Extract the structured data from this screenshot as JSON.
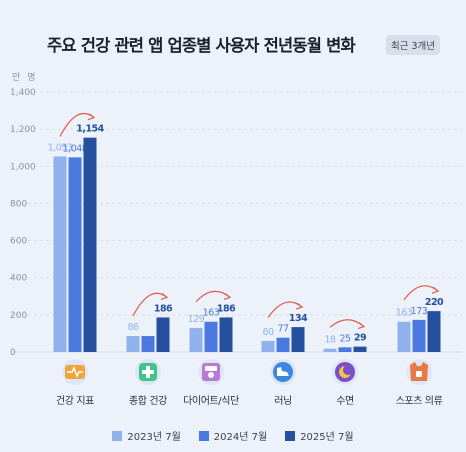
{
  "header": {
    "title": "주요 건강 관련 앱 업종별 사용자 전년동월 변화",
    "badge": "최근 3개년",
    "unit": "만 명"
  },
  "colors": {
    "series_2023": "#8fb2ec",
    "series_2024": "#4a7ae0",
    "series_2025": "#24509f",
    "arrow": "#e05a4f",
    "grid": "#d7dde8",
    "axis_text": "#8c95a6"
  },
  "chart_data": {
    "type": "bar",
    "title": "주요 건강 관련 앱 업종별 사용자 전년동월 변화",
    "ylabel": "만 명",
    "ylim": [
      0,
      1400
    ],
    "yticks": [
      0,
      200,
      400,
      600,
      800,
      1000,
      1200,
      1400
    ],
    "ytick_labels": [
      "0",
      "200",
      "400",
      "600",
      "800",
      "1,000",
      "1,200",
      "1,400"
    ],
    "grid": true,
    "legend_position": "bottom",
    "categories": [
      "건강 지표",
      "종합 건강",
      "다이어트/식단",
      "러닝",
      "수면",
      "스포츠 의류"
    ],
    "category_icons": [
      "heart-pulse-icon",
      "medical-cross-icon",
      "scale-icon",
      "running-shoe-icon",
      "moon-icon",
      "sports-vest-icon"
    ],
    "series": [
      {
        "name": "2023년 7월",
        "values": [
          1053,
          86,
          129,
          60,
          18,
          163
        ],
        "labels": [
          "1,053",
          "86",
          "129",
          "60",
          "18",
          "163"
        ]
      },
      {
        "name": "2024년 7월",
        "values": [
          1048,
          86,
          163,
          77,
          25,
          173
        ],
        "labels": [
          "1,048",
          "",
          "163",
          "77",
          "25",
          "173"
        ]
      },
      {
        "name": "2025년 7월",
        "values": [
          1154,
          186,
          186,
          134,
          29,
          220
        ],
        "labels": [
          "1,154",
          "186",
          "186",
          "134",
          "29",
          "220"
        ]
      }
    ]
  }
}
